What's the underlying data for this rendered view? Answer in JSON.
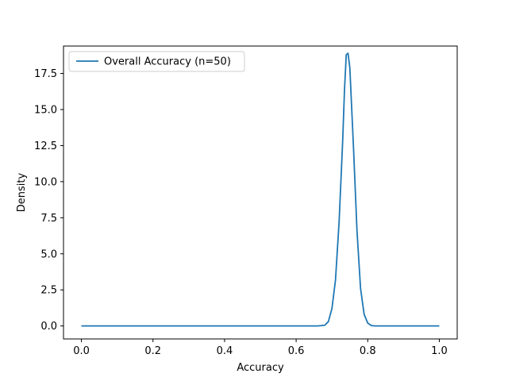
{
  "chart_data": {
    "type": "line",
    "title": "",
    "xlabel": "Accuracy",
    "ylabel": "Density",
    "xlim": [
      -0.05,
      1.05
    ],
    "ylim": [
      -0.9,
      19.4
    ],
    "x_ticks": [
      "0.0",
      "0.2",
      "0.4",
      "0.6",
      "0.8",
      "1.0"
    ],
    "y_ticks": [
      "0.0",
      "2.5",
      "5.0",
      "7.5",
      "10.0",
      "12.5",
      "15.0",
      "17.5"
    ],
    "grid": false,
    "legend_position": "top-left",
    "series": [
      {
        "name": "Overall Accuracy (n=50)",
        "color": "#1f77b4",
        "points": [
          [
            0.0,
            0.0
          ],
          [
            0.66,
            0.0
          ],
          [
            0.68,
            0.05
          ],
          [
            0.69,
            0.3
          ],
          [
            0.7,
            1.2
          ],
          [
            0.71,
            3.2
          ],
          [
            0.72,
            7.2
          ],
          [
            0.73,
            12.8
          ],
          [
            0.735,
            16.3
          ],
          [
            0.74,
            18.8
          ],
          [
            0.745,
            18.9
          ],
          [
            0.75,
            17.9
          ],
          [
            0.76,
            12.5
          ],
          [
            0.77,
            6.6
          ],
          [
            0.78,
            2.6
          ],
          [
            0.79,
            0.8
          ],
          [
            0.8,
            0.2
          ],
          [
            0.81,
            0.03
          ],
          [
            0.82,
            0.0
          ],
          [
            1.0,
            0.0
          ]
        ]
      }
    ]
  }
}
